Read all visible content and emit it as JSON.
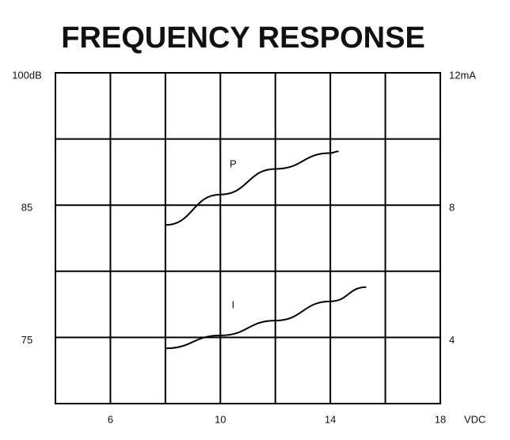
{
  "chart_data": {
    "type": "line",
    "title": "FREQUENCY RESPONSE",
    "xlabel": "VDC",
    "xlim": [
      4,
      18
    ],
    "xticks": [
      6,
      10,
      14,
      18
    ],
    "minor_xticks": [
      8,
      12,
      16
    ],
    "ylim": [
      70,
      100
    ],
    "y_scale": "piecewise",
    "yticks": [
      {
        "value": 100,
        "label": "100dB"
      },
      85,
      75
    ],
    "y2lim": [
      2,
      12
    ],
    "y2ticks": [
      {
        "value": 12,
        "label": "12mA"
      },
      8,
      4
    ],
    "minor_y2ticks": [
      6,
      10
    ],
    "grid": true,
    "color": "#000000",
    "series": [
      {
        "name": "P",
        "color": "#000000",
        "x": [
          8,
          10,
          12,
          14,
          14.3
        ],
        "values": [
          83.5,
          86.2,
          89.1,
          90.9,
          91.1
        ]
      },
      {
        "name": "I",
        "color": "#000000",
        "axis": "y2",
        "x": [
          8,
          10,
          12,
          14,
          15.3
        ],
        "values": [
          3.67,
          4.06,
          4.51,
          5.09,
          5.52
        ]
      }
    ]
  }
}
